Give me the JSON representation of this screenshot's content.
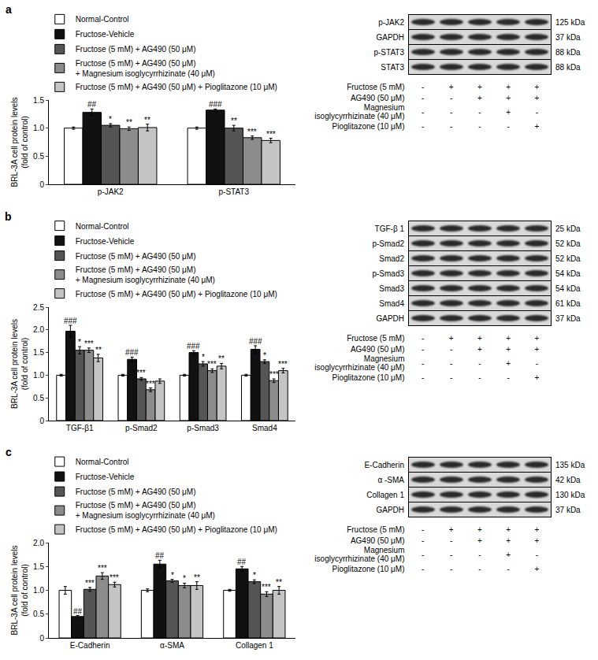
{
  "chart_data": [
    {
      "type": "bar",
      "label": "a",
      "ylabel": "BRL-3A cell protein levels (fold of control)",
      "grid": false,
      "categories": [
        "p-JAK2",
        "p-STAT3"
      ],
      "ylim": [
        0,
        1.5
      ],
      "yticks": [
        0,
        0.5,
        {
          "value": 1,
          "label": "1.0"
        },
        {
          "value": 1.5,
          "label": "1.5"
        }
      ],
      "series": [
        {
          "name": "Normal-Control",
          "color": "#ffffff",
          "values": [
            1.0,
            1.0
          ],
          "errors": [
            0.02,
            0.02
          ],
          "marks": [
            null,
            null
          ]
        },
        {
          "name": "Fructose-Vehicle",
          "color": "#111111",
          "values": [
            1.28,
            1.32
          ],
          "errors": [
            0.06,
            0.02
          ],
          "marks": [
            "##",
            "###"
          ]
        },
        {
          "name": "Fructose (5 mM) + AG490 (50 μM)",
          "color": "#555555",
          "values": [
            1.05,
            1.0
          ],
          "errors": [
            0.03,
            0.05
          ],
          "marks": [
            "*",
            "**"
          ]
        },
        {
          "name": "Fructose (5 mM) + AG490 (50 μM) + Magnesium isoglycyrrhizinate (40 μM)",
          "color": "#8c8c8c",
          "values": [
            0.99,
            0.83
          ],
          "errors": [
            0.03,
            0.03
          ],
          "marks": [
            "**",
            "***"
          ]
        },
        {
          "name": "Fructose (5 mM) + AG490 (50 μM) + Pioglitazone (10 μM)",
          "color": "#c4c4c4",
          "values": [
            1.01,
            0.78
          ],
          "errors": [
            0.06,
            0.04
          ],
          "marks": [
            "**",
            "***"
          ]
        }
      ]
    },
    {
      "type": "bar",
      "label": "b",
      "ylabel": "BRL-3A cell protein levels (fold of control)",
      "grid": false,
      "categories": [
        "TGF-β1",
        "p-Smad2",
        "p-Smad3",
        "Smad4"
      ],
      "ylim": [
        0,
        2.5
      ],
      "yticks": [
        0,
        0.5,
        {
          "value": 1,
          "label": "1.0"
        },
        {
          "value": 1.5,
          "label": "1.5"
        },
        {
          "value": 2,
          "label": "2.0"
        },
        {
          "value": 2.5,
          "label": "2.5"
        }
      ],
      "series": [
        {
          "name": "Normal-Control",
          "color": "#ffffff",
          "values": [
            1.0,
            1.0,
            1.0,
            1.0
          ],
          "errors": [
            0.02,
            0.02,
            0.02,
            0.02
          ],
          "marks": [
            null,
            null,
            null,
            null
          ]
        },
        {
          "name": "Fructose-Vehicle",
          "color": "#111111",
          "values": [
            1.97,
            1.35,
            1.5,
            1.57
          ],
          "errors": [
            0.13,
            0.05,
            0.04,
            0.08
          ],
          "marks": [
            "###",
            "###",
            "###",
            "###"
          ]
        },
        {
          "name": "Fructose (5 mM) + AG490 (50 μM)",
          "color": "#555555",
          "values": [
            1.55,
            0.92,
            1.25,
            1.3
          ],
          "errors": [
            0.08,
            0.03,
            0.05,
            0.04
          ],
          "marks": [
            "*",
            "***",
            "*",
            "*"
          ]
        },
        {
          "name": "Fructose (5 mM) + AG490 (50 μM) + Magnesium isoglycyrrhizinate (40 μM)",
          "color": "#8c8c8c",
          "values": [
            1.55,
            0.68,
            1.1,
            0.88
          ],
          "errors": [
            0.05,
            0.04,
            0.04,
            0.04
          ],
          "marks": [
            "***",
            "***",
            "***",
            "***"
          ]
        },
        {
          "name": "Fructose (5 mM) + AG490 (50 μM) + Pioglitazone (10 μM)",
          "color": "#c4c4c4",
          "values": [
            1.38,
            0.87,
            1.2,
            1.1
          ],
          "errors": [
            0.08,
            0.05,
            0.06,
            0.05
          ],
          "marks": [
            "**",
            null,
            "**",
            "***"
          ]
        }
      ]
    },
    {
      "type": "bar",
      "label": "c",
      "ylabel": "BRL-3A cell protein levels (fold of control)",
      "grid": false,
      "categories": [
        "E-Cadherin",
        "α-SMA",
        "Collagen 1"
      ],
      "ylim": [
        0,
        2.0
      ],
      "yticks": [
        0,
        0.5,
        {
          "value": 1,
          "label": "1.0"
        },
        {
          "value": 1.5,
          "label": "1.5"
        },
        {
          "value": 2,
          "label": "2.0"
        }
      ],
      "series": [
        {
          "name": "Normal-Control",
          "color": "#ffffff",
          "values": [
            1.0,
            1.0,
            1.0
          ],
          "errors": [
            0.08,
            0.03,
            0.02
          ],
          "marks": [
            null,
            null,
            null
          ]
        },
        {
          "name": "Fructose-Vehicle",
          "color": "#111111",
          "values": [
            0.45,
            1.55,
            1.45
          ],
          "errors": [
            0.02,
            0.08,
            0.05
          ],
          "marks": [
            "##",
            "##",
            "##"
          ]
        },
        {
          "name": "Fructose (5 mM) + AG490 (50 μM)",
          "color": "#555555",
          "values": [
            1.02,
            1.2,
            1.18
          ],
          "errors": [
            0.04,
            0.03,
            0.04
          ],
          "marks": [
            "***",
            "*",
            "*"
          ]
        },
        {
          "name": "Fructose (5 mM) + AG490 (50 μM) + Magnesium isoglycyrrhizinate (40 μM)",
          "color": "#8c8c8c",
          "values": [
            1.3,
            1.1,
            0.92
          ],
          "errors": [
            0.07,
            0.05,
            0.05
          ],
          "marks": [
            "***",
            "*",
            "***"
          ]
        },
        {
          "name": "Fructose (5 mM) + AG490 (50 μM) + Pioglitazone (10 μM)",
          "color": "#c4c4c4",
          "values": [
            1.12,
            1.1,
            1.0
          ],
          "errors": [
            0.05,
            0.08,
            0.08
          ],
          "marks": [
            "***",
            "**",
            "**"
          ]
        }
      ]
    }
  ],
  "blots": [
    {
      "rows": [
        {
          "label": "p-JAK2",
          "kda": "125 kDa"
        },
        {
          "label": "GAPDH",
          "kda": "37 kDa"
        },
        {
          "label": "p-STAT3",
          "kda": "88 kDa"
        },
        {
          "label": "STAT3",
          "kda": "88 kDa"
        }
      ],
      "conditions": [
        {
          "label": "Fructose (5 mM)",
          "signs": [
            "-",
            "+",
            "+",
            "+",
            "+"
          ]
        },
        {
          "label": "AG490 (50 μM)",
          "signs": [
            "-",
            "-",
            "+",
            "+",
            "+"
          ]
        },
        {
          "label": "Magnesium isoglycyrrhizinate (40 μM)",
          "signs": [
            "-",
            "-",
            "-",
            "+",
            "-"
          ]
        },
        {
          "label": "Pioglitazone (10 μM)",
          "signs": [
            "-",
            "-",
            "-",
            "-",
            "+"
          ]
        }
      ]
    },
    {
      "rows": [
        {
          "label": "TGF-β 1",
          "kda": "25 kDa"
        },
        {
          "label": "p-Smad2",
          "kda": "52 kDa"
        },
        {
          "label": "Smad2",
          "kda": "52 kDa"
        },
        {
          "label": "p-Smad3",
          "kda": "54 kDa"
        },
        {
          "label": "Smad3",
          "kda": "54 kDa"
        },
        {
          "label": "Smad4",
          "kda": "61 kDa"
        },
        {
          "label": "GAPDH",
          "kda": "37 kDa"
        }
      ],
      "conditions": [
        {
          "label": "Fructose (5 mM)",
          "signs": [
            "-",
            "+",
            "+",
            "+",
            "+"
          ]
        },
        {
          "label": "AG490 (50 μM)",
          "signs": [
            "-",
            "-",
            "+",
            "+",
            "+"
          ]
        },
        {
          "label": "Magnesium isoglycyrrhizinate (40 μM)",
          "signs": [
            "-",
            "-",
            "-",
            "+",
            "-"
          ]
        },
        {
          "label": "Pioglitazone (10 μM)",
          "signs": [
            "-",
            "-",
            "-",
            "-",
            "+"
          ]
        }
      ]
    },
    {
      "rows": [
        {
          "label": "E-Cadherin",
          "kda": "135 kDa"
        },
        {
          "label": "α -SMA",
          "kda": "42 kDa"
        },
        {
          "label": "Collagen 1",
          "kda": "130 kDa"
        },
        {
          "label": "GAPDH",
          "kda": "37 kDa"
        }
      ],
      "conditions": [
        {
          "label": "Fructose (5 mM)",
          "signs": [
            "-",
            "+",
            "+",
            "+",
            "+"
          ]
        },
        {
          "label": "AG490 (50 μM)",
          "signs": [
            "-",
            "-",
            "+",
            "+",
            "+"
          ]
        },
        {
          "label": "Magnesium isoglycyrrhizinate (40 μM)",
          "signs": [
            "-",
            "-",
            "-",
            "+",
            "-"
          ]
        },
        {
          "label": "Pioglitazone (10 μM)",
          "signs": [
            "-",
            "-",
            "-",
            "-",
            "+"
          ]
        }
      ]
    }
  ]
}
